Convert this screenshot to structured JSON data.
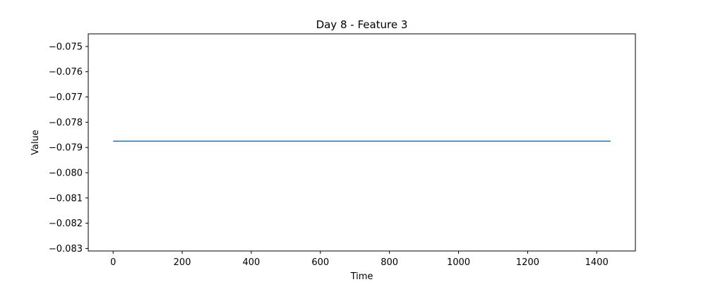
{
  "chart_data": {
    "type": "line",
    "title": "Day 8 - Feature 3",
    "xlabel": "Time",
    "ylabel": "Value",
    "xlim": [
      -72,
      1512
    ],
    "ylim": [
      -0.0831,
      -0.0745
    ],
    "xticks": [
      0,
      200,
      400,
      600,
      800,
      1000,
      1200,
      1400
    ],
    "xtick_labels": [
      "0",
      "200",
      "400",
      "600",
      "800",
      "1000",
      "1200",
      "1400"
    ],
    "yticks": [
      -0.075,
      -0.076,
      -0.077,
      -0.078,
      -0.079,
      -0.08,
      -0.081,
      -0.082,
      -0.083
    ],
    "ytick_labels": [
      "−0.075",
      "−0.076",
      "−0.077",
      "−0.078",
      "−0.079",
      "−0.080",
      "−0.081",
      "−0.082",
      "−0.083"
    ],
    "grid": false,
    "series": [
      {
        "color": "#1f77b4",
        "x": [
          0,
          1440
        ],
        "y": [
          -0.07875,
          -0.07875
        ]
      }
    ]
  }
}
